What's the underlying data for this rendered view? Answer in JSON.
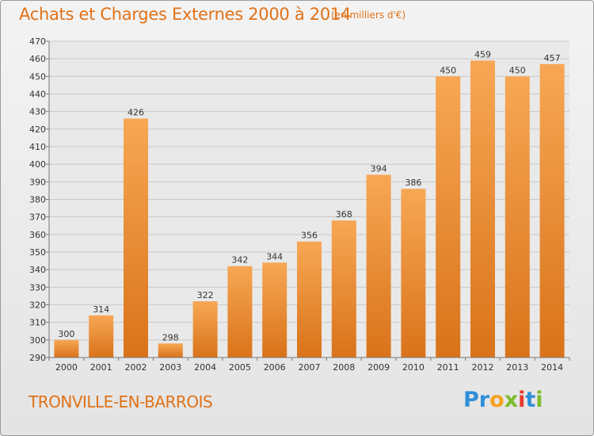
{
  "chart_data": {
    "type": "bar",
    "title": "Achats et Charges Externes 2000 à 2014",
    "subtitle": "(en milliers d'€)",
    "categories": [
      "2000",
      "2001",
      "2002",
      "2003",
      "2004",
      "2005",
      "2006",
      "2007",
      "2008",
      "2009",
      "2010",
      "2011",
      "2012",
      "2013",
      "2014"
    ],
    "values": [
      300,
      314,
      426,
      298,
      322,
      342,
      344,
      356,
      368,
      394,
      386,
      450,
      459,
      450,
      457
    ],
    "ylim": [
      290,
      470
    ],
    "yticks": [
      290,
      300,
      310,
      320,
      330,
      340,
      350,
      360,
      370,
      380,
      390,
      400,
      410,
      420,
      430,
      440,
      450,
      460,
      470
    ],
    "xlabel": "",
    "ylabel": "",
    "grid": true,
    "colors": {
      "bar_light": "#f7a754",
      "bar_dark": "#d9731a",
      "text": "#e07218"
    }
  },
  "footer": {
    "town": "TRONVILLE-EN-BARROIS",
    "logo": "Proxiti"
  }
}
